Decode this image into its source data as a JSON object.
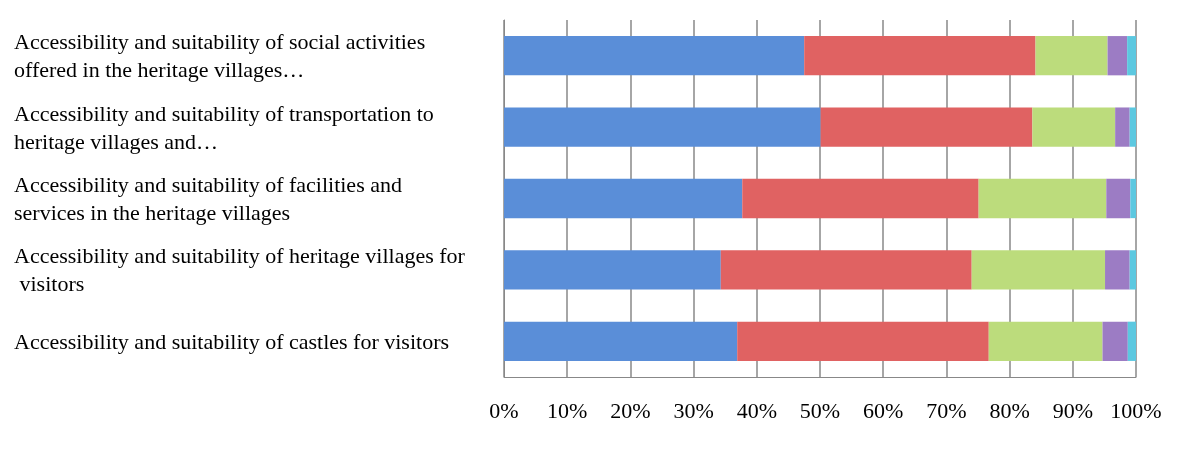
{
  "chart_data": {
    "type": "bar",
    "orientation": "horizontal",
    "stacked": true,
    "categories": [
      "Accessibility and suitability of social activities offered in the heritage villages…",
      "Accessibility and suitability of transportation to heritage villages and…",
      "Accessibility and suitability of facilities and services in the heritage villages",
      "Accessibility and suitability of heritage villages for visitors",
      "Accessibility and suitability of castles for visitors"
    ],
    "series": [
      {
        "color": "#5a8ed8",
        "values": [
          47.5,
          50.1,
          37.7,
          34.3,
          36.9
        ]
      },
      {
        "color": "#e06262",
        "values": [
          36.6,
          33.5,
          37.4,
          39.7,
          39.8
        ]
      },
      {
        "color": "#bcdc7c",
        "values": [
          11.4,
          13.1,
          20.2,
          21.1,
          18.0
        ]
      },
      {
        "color": "#9c7cc4",
        "values": [
          3.1,
          2.3,
          3.8,
          3.9,
          4.0
        ]
      },
      {
        "color": "#5cc8e0",
        "values": [
          1.4,
          1.0,
          0.9,
          1.0,
          1.3
        ]
      }
    ],
    "xlim": [
      0,
      100
    ],
    "xticks": [
      {
        "value": 0,
        "label": "0%"
      },
      {
        "value": 10,
        "label": "10%"
      },
      {
        "value": 20,
        "label": "20%"
      },
      {
        "value": 30,
        "label": "30%"
      },
      {
        "value": 40,
        "label": "40%"
      },
      {
        "value": 50,
        "label": "50%"
      },
      {
        "value": 60,
        "label": "60%"
      },
      {
        "value": 70,
        "label": "70%"
      },
      {
        "value": 80,
        "label": "80%"
      },
      {
        "value": 90,
        "label": "90%"
      },
      {
        "value": 100,
        "label": "100%"
      }
    ],
    "grid": "x"
  }
}
